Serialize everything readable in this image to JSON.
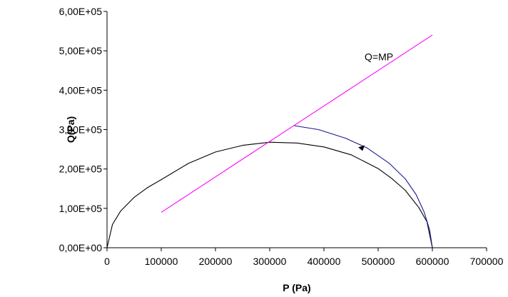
{
  "chart_data": {
    "type": "line",
    "xlabel": "P (Pa)",
    "ylabel": "Q(Pa)",
    "xlim": [
      0,
      700000
    ],
    "ylim": [
      0,
      600000
    ],
    "xticks": [
      "0",
      "100000",
      "200000",
      "300000",
      "400000",
      "500000",
      "600000",
      "700000"
    ],
    "yticks": [
      "0,00E+00",
      "1,00E+05",
      "2,00E+05",
      "3,00E+05",
      "4,00E+05",
      "5,00E+05",
      "6,00E+05"
    ],
    "grid": false,
    "legend": "none",
    "annotations": [
      {
        "text": "Q=MP",
        "x": 475000,
        "y": 485000
      }
    ],
    "series": [
      {
        "color": "#000000",
        "x": [
          0,
          10000,
          25000,
          50000,
          75000,
          100000,
          150000,
          200000,
          250000,
          300000,
          350000,
          400000,
          450000,
          500000,
          525000,
          550000,
          575000,
          590000,
          600000
        ],
        "y": [
          0,
          59000,
          93000,
          128000,
          153000,
          173000,
          214000,
          243000,
          260000,
          268000,
          266000,
          256000,
          236000,
          201000,
          176000,
          146000,
          102000,
          66000,
          0
        ]
      },
      {
        "color": "#ff00ff",
        "x": [
          100000,
          600000
        ],
        "y": [
          90000,
          540000
        ]
      },
      {
        "color": "#1a1a8c",
        "x": [
          345000,
          390000,
          440000,
          480000,
          520000,
          550000,
          570000,
          585000,
          595000,
          600000
        ],
        "y": [
          310000,
          300000,
          278000,
          253000,
          215000,
          175000,
          135000,
          90000,
          45000,
          0
        ]
      },
      {
        "color": "#1a1a8c",
        "x": [
          100000,
          600000
        ],
        "y": [
          0,
          0
        ]
      }
    ],
    "arrows": [
      {
        "color": "#000000",
        "x": 466000,
        "y": 253000
      }
    ]
  }
}
